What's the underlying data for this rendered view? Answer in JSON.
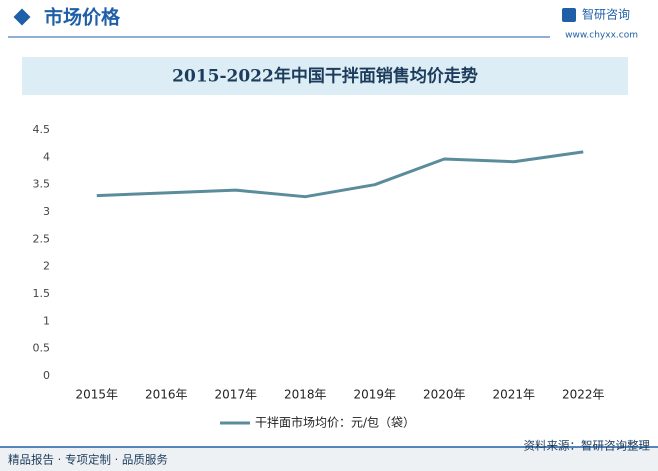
{
  "header": {
    "section": "市场价格",
    "brand": "智研咨询",
    "website": "www.chyxx.com"
  },
  "chart_data": {
    "type": "line",
    "title": "2015-2022年中国干拌面销售均价走势",
    "categories": [
      "2015年",
      "2016年",
      "2017年",
      "2018年",
      "2019年",
      "2020年",
      "2021年",
      "2022年"
    ],
    "series": [
      {
        "name": "干拌面市场均价：元/包（袋）",
        "color": "#5b8c9c",
        "values": [
          3.3,
          3.35,
          3.4,
          3.28,
          3.5,
          3.97,
          3.92,
          4.1
        ]
      }
    ],
    "ylim": [
      0,
      4.5
    ],
    "yticks": [
      0,
      0.5,
      1,
      1.5,
      2,
      2.5,
      3,
      3.5,
      4,
      4.5
    ],
    "grid": false,
    "legend": "bottom"
  },
  "footer": {
    "left": "精品报告 · 专项定制 · 品质服务",
    "right": "资料来源：智研咨询整理"
  }
}
